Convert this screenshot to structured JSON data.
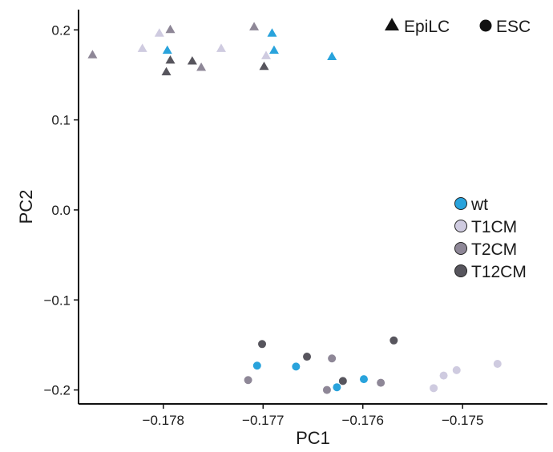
{
  "chart_data": {
    "type": "scatter",
    "xlabel": "PC1",
    "ylabel": "PC2",
    "xlim": [
      -0.17885,
      -0.17415
    ],
    "ylim": [
      -0.2155,
      0.2225
    ],
    "x_ticks": [
      -0.178,
      -0.177,
      -0.176,
      -0.175
    ],
    "x_tick_labels": [
      "−0.178",
      "−0.177",
      "−0.176",
      "−0.175"
    ],
    "y_ticks": [
      0.2,
      0.1,
      0.0,
      -0.1,
      -0.2
    ],
    "y_tick_labels": [
      "0.2",
      "0.1",
      "0.0",
      "−0.1",
      "−0.2"
    ],
    "grid": false,
    "shape_legend": {
      "placement": "top-right",
      "items": [
        {
          "label": "EpiLC",
          "shape": "triangle"
        },
        {
          "label": "ESC",
          "shape": "circle"
        }
      ]
    },
    "color_legend": {
      "placement": "right",
      "items": [
        {
          "label": "wt",
          "color": "#29a3dc"
        },
        {
          "label": "T1CM",
          "color": "#cfcbe0"
        },
        {
          "label": "T2CM",
          "color": "#8e8797"
        },
        {
          "label": "T12CM",
          "color": "#57555d"
        }
      ]
    },
    "series": [
      {
        "shape": "triangle",
        "group": "wt",
        "color": "#29a3dc",
        "points": [
          {
            "x": -0.17796,
            "y": 0.177
          },
          {
            "x": -0.17691,
            "y": 0.196
          },
          {
            "x": -0.17689,
            "y": 0.177
          },
          {
            "x": -0.17631,
            "y": 0.17
          }
        ]
      },
      {
        "shape": "triangle",
        "group": "T1CM",
        "color": "#cfcbe0",
        "points": [
          {
            "x": -0.17821,
            "y": 0.179
          },
          {
            "x": -0.17804,
            "y": 0.196
          },
          {
            "x": -0.17742,
            "y": 0.179
          },
          {
            "x": -0.17697,
            "y": 0.171
          }
        ]
      },
      {
        "shape": "triangle",
        "group": "T2CM",
        "color": "#8e8797",
        "points": [
          {
            "x": -0.17871,
            "y": 0.172
          },
          {
            "x": -0.17793,
            "y": 0.2
          },
          {
            "x": -0.17762,
            "y": 0.158
          },
          {
            "x": -0.17709,
            "y": 0.203
          }
        ]
      },
      {
        "shape": "triangle",
        "group": "T12CM",
        "color": "#57555d",
        "points": [
          {
            "x": -0.17797,
            "y": 0.153
          },
          {
            "x": -0.17793,
            "y": 0.166
          },
          {
            "x": -0.17771,
            "y": 0.165
          },
          {
            "x": -0.17699,
            "y": 0.159
          }
        ]
      },
      {
        "shape": "circle",
        "group": "wt",
        "color": "#29a3dc",
        "points": [
          {
            "x": -0.17706,
            "y": -0.173
          },
          {
            "x": -0.17667,
            "y": -0.174
          },
          {
            "x": -0.17626,
            "y": -0.197
          },
          {
            "x": -0.17599,
            "y": -0.188
          }
        ]
      },
      {
        "shape": "circle",
        "group": "T1CM",
        "color": "#cfcbe0",
        "points": [
          {
            "x": -0.17529,
            "y": -0.198
          },
          {
            "x": -0.17519,
            "y": -0.184
          },
          {
            "x": -0.17506,
            "y": -0.178
          },
          {
            "x": -0.17465,
            "y": -0.171
          }
        ]
      },
      {
        "shape": "circle",
        "group": "T2CM",
        "color": "#8e8797",
        "points": [
          {
            "x": -0.17715,
            "y": -0.189
          },
          {
            "x": -0.17636,
            "y": -0.2
          },
          {
            "x": -0.17631,
            "y": -0.165
          },
          {
            "x": -0.17582,
            "y": -0.192
          }
        ]
      },
      {
        "shape": "circle",
        "group": "T12CM",
        "color": "#57555d",
        "points": [
          {
            "x": -0.17701,
            "y": -0.149
          },
          {
            "x": -0.17656,
            "y": -0.163
          },
          {
            "x": -0.1762,
            "y": -0.19
          },
          {
            "x": -0.17569,
            "y": -0.145
          }
        ]
      }
    ]
  }
}
